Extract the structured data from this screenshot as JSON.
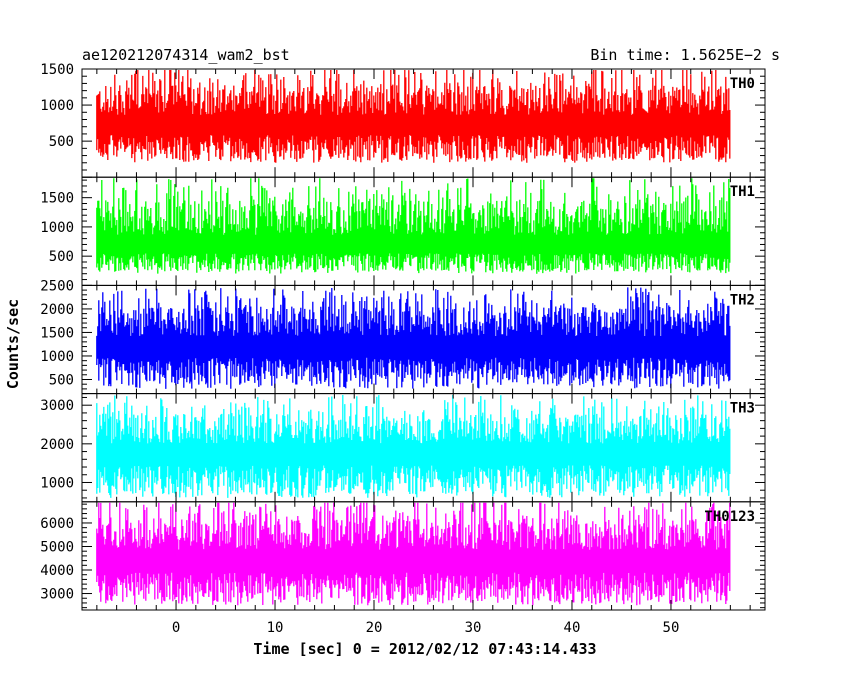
{
  "header": {
    "left_title": "ae120212074314_wam2_bst",
    "right_title": "Bin time: 1.5625E−2 s"
  },
  "xlabel": "Time [sec] 0 = 2012/02/12 07:43:14.433",
  "ylabel": "Counts/sec",
  "chart_data": {
    "type": "line",
    "title": "ae120212074314_wam2_bst",
    "subtitle": "Bin time: 1.5625E−2 s",
    "xlabel": "Time [sec] 0 = 2012/02/12 07:43:14.433",
    "ylabel": "Counts/sec",
    "xlim": [
      -9.5,
      59.5
    ],
    "x_ticks": [
      0,
      10,
      20,
      30,
      40,
      50
    ],
    "x_tick_labels": [
      "0",
      "10",
      "20",
      "30",
      "40",
      "50"
    ],
    "x_data_range": [
      -8,
      56
    ],
    "bin_time_s": 0.015625,
    "grid": false,
    "panels": [
      {
        "name": "TH0",
        "color": "#ff0000",
        "ylim": [
          0,
          1500
        ],
        "y_ticks": [
          500,
          1000,
          1500
        ],
        "y_tick_labels": [
          "500",
          "1000",
          "1500"
        ],
        "mean": 750,
        "low": 200,
        "high": 1500
      },
      {
        "name": "TH1",
        "color": "#00ff00",
        "ylim": [
          0,
          1850
        ],
        "y_ticks": [
          500,
          1000,
          1500
        ],
        "y_tick_labels": [
          "500",
          "1000",
          "1500"
        ],
        "mean": 700,
        "low": 200,
        "high": 1800
      },
      {
        "name": "TH2",
        "color": "#0000ff",
        "ylim": [
          200,
          2500
        ],
        "y_ticks": [
          500,
          1000,
          1500,
          2000,
          2500
        ],
        "y_tick_labels": [
          "500",
          "1000",
          "1500",
          "2000",
          "2500"
        ],
        "mean": 1250,
        "low": 300,
        "high": 2400
      },
      {
        "name": "TH3",
        "color": "#00ffff",
        "ylim": [
          500,
          3300
        ],
        "y_ticks": [
          1000,
          2000,
          3000
        ],
        "y_tick_labels": [
          "1000",
          "2000",
          "3000"
        ],
        "mean": 1800,
        "low": 600,
        "high": 3200
      },
      {
        "name": "TH0123",
        "color": "#ff00ff",
        "ylim": [
          2300,
          6900
        ],
        "y_ticks": [
          3000,
          4000,
          5000,
          6000
        ],
        "y_tick_labels": [
          "3000",
          "4000",
          "5000",
          "6000"
        ],
        "mean": 4500,
        "low": 2500,
        "high": 6900
      }
    ]
  }
}
